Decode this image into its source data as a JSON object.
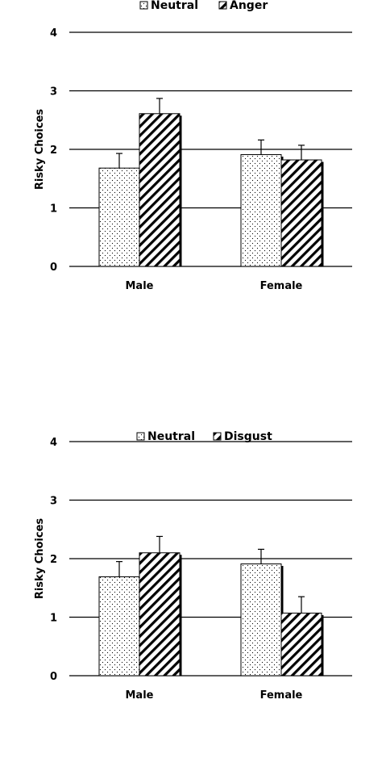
{
  "chart_data": [
    {
      "type": "bar",
      "title": "",
      "xlabel": "",
      "ylabel": "Risky Choices",
      "ylim": [
        0,
        4
      ],
      "yticks": [
        0,
        1,
        2,
        3,
        4
      ],
      "grid": true,
      "legend_position": "top-center",
      "categories": [
        "Male",
        "Female"
      ],
      "series": [
        {
          "name": "Neutral",
          "pattern": "dots",
          "values": [
            1.68,
            1.91
          ],
          "errors": [
            0.25,
            0.25
          ]
        },
        {
          "name": "Anger",
          "pattern": "hatch",
          "values": [
            2.61,
            1.82
          ],
          "errors": [
            0.26,
            0.25
          ]
        }
      ]
    },
    {
      "type": "bar",
      "title": "",
      "xlabel": "",
      "ylabel": "Risky Choices",
      "ylim": [
        0,
        4
      ],
      "yticks": [
        0,
        1,
        2,
        3,
        4
      ],
      "grid": true,
      "legend_position": "top-center",
      "categories": [
        "Male",
        "Female"
      ],
      "series": [
        {
          "name": "Neutral",
          "pattern": "dots",
          "values": [
            1.69,
            1.91
          ],
          "errors": [
            0.26,
            0.25
          ]
        },
        {
          "name": "Disgust",
          "pattern": "hatch",
          "values": [
            2.1,
            1.07
          ],
          "errors": [
            0.28,
            0.28
          ]
        }
      ]
    }
  ]
}
